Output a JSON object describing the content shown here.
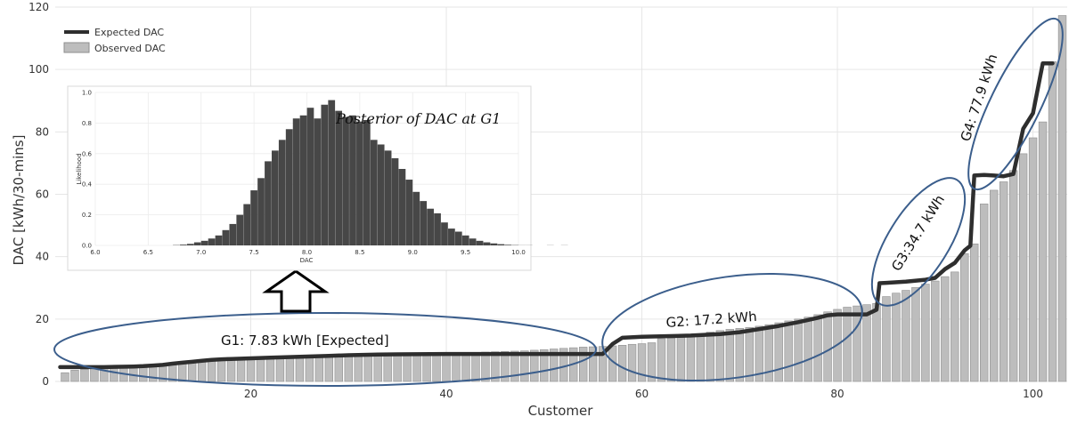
{
  "chart_data": [
    {
      "type": "bar",
      "xlabel": "Customer",
      "ylabel": "DAC [kWh/30-mins]",
      "xlim": [
        0,
        103.5
      ],
      "ylim": [
        0,
        120
      ],
      "xticks": [
        20,
        40,
        60,
        80,
        100
      ],
      "yticks": [
        0,
        20,
        40,
        60,
        80,
        100,
        120
      ],
      "grid": true,
      "legend_position": "top-left",
      "series": [
        {
          "name": "Observed DAC",
          "kind": "bar",
          "x": [
            1,
            2,
            3,
            4,
            5,
            6,
            7,
            8,
            9,
            10,
            11,
            12,
            13,
            14,
            15,
            16,
            17,
            18,
            19,
            20,
            21,
            22,
            23,
            24,
            25,
            26,
            27,
            28,
            29,
            30,
            31,
            32,
            33,
            34,
            35,
            36,
            37,
            38,
            39,
            40,
            41,
            42,
            43,
            44,
            45,
            46,
            47,
            48,
            49,
            50,
            51,
            52,
            53,
            54,
            55,
            56,
            57,
            58,
            59,
            60,
            61,
            62,
            63,
            64,
            65,
            66,
            67,
            68,
            69,
            70,
            71,
            72,
            73,
            74,
            75,
            76,
            77,
            78,
            79,
            80,
            81,
            82,
            83,
            84,
            85,
            86,
            87,
            88,
            89,
            90,
            91,
            92,
            93,
            94,
            95,
            96,
            97,
            98,
            99,
            100,
            101,
            102,
            103
          ],
          "values": [
            2.8,
            3.6,
            3.9,
            4.1,
            4.3,
            4.5,
            4.7,
            4.9,
            5.1,
            5.3,
            5.6,
            5.9,
            6.2,
            6.4,
            6.6,
            6.8,
            7.0,
            7.1,
            7.3,
            7.4,
            7.5,
            7.6,
            7.7,
            7.8,
            7.8,
            7.9,
            7.9,
            8.0,
            8.0,
            8.1,
            8.1,
            8.2,
            8.2,
            8.3,
            8.4,
            8.5,
            8.6,
            8.7,
            8.8,
            8.9,
            9.0,
            9.2,
            9.3,
            9.4,
            9.5,
            9.6,
            9.7,
            9.8,
            10.0,
            10.2,
            10.4,
            10.6,
            10.8,
            11.0,
            11.1,
            11.2,
            11.4,
            11.6,
            11.9,
            12.1,
            12.4,
            13.7,
            13.9,
            14.1,
            14.6,
            15.2,
            15.8,
            16.3,
            16.7,
            17.0,
            17.3,
            17.7,
            18.2,
            18.8,
            19.4,
            20.0,
            20.6,
            21.4,
            22.3,
            23.1,
            23.8,
            24.2,
            24.6,
            25.0,
            27.2,
            28.3,
            29.2,
            30.1,
            31.2,
            32.2,
            33.6,
            35.1,
            41.0,
            44.1,
            56.9,
            61.3,
            64.0,
            67.6,
            73.0,
            78.1,
            83.2,
            102.5,
            117.3
          ]
        },
        {
          "name": "Expected DAC",
          "kind": "line",
          "x": [
            0.5,
            5,
            8,
            9,
            10,
            11,
            12,
            13,
            14,
            15,
            16,
            17,
            18,
            20,
            22,
            25,
            28,
            30,
            33,
            35,
            40,
            45,
            50,
            55,
            56,
            57,
            58,
            60,
            65,
            68,
            70,
            72,
            74,
            76,
            78,
            79,
            80,
            83,
            84,
            84.3,
            85,
            87,
            89,
            90,
            91,
            92,
            93,
            93.6,
            94,
            95,
            96,
            97,
            98,
            99,
            100,
            101,
            102
          ],
          "values": [
            4.6,
            4.6,
            4.8,
            4.9,
            5.1,
            5.3,
            5.7,
            6.0,
            6.3,
            6.6,
            6.9,
            7.1,
            7.2,
            7.4,
            7.6,
            7.9,
            8.2,
            8.4,
            8.6,
            8.7,
            8.8,
            8.8,
            8.8,
            8.8,
            8.8,
            12.0,
            14.0,
            14.3,
            14.7,
            15.2,
            15.8,
            16.8,
            17.8,
            19.0,
            20.4,
            21.2,
            21.5,
            21.5,
            23.0,
            31.5,
            31.6,
            32.0,
            32.6,
            33.2,
            36.0,
            38.0,
            42.0,
            43.5,
            66.0,
            66.2,
            66.0,
            65.8,
            66.5,
            81.0,
            86.0,
            102.0,
            102.0
          ]
        }
      ],
      "groups": [
        {
          "label": "G1: 7.83 kWh [Expected]"
        },
        {
          "label": "G2: 17.2 kWh"
        },
        {
          "label": "G3:34.7 kWh"
        },
        {
          "label": "G4: 77.9 kWh"
        }
      ]
    },
    {
      "type": "bar",
      "title": "Posterior of DAC at G1",
      "xlabel": "DAC",
      "ylabel": "Likelihood",
      "xlim": [
        6.0,
        10.0
      ],
      "ylim": [
        0.0,
        1.0
      ],
      "xticks": [
        6.0,
        6.5,
        7.0,
        7.5,
        8.0,
        8.5,
        9.0,
        9.5,
        10.0
      ],
      "yticks": [
        0.0,
        0.2,
        0.4,
        0.6,
        0.8,
        1.0
      ],
      "grid": true,
      "bin_start": 6.2,
      "bin_width": 0.0667,
      "values": [
        0,
        0,
        0,
        0,
        0,
        0,
        0,
        0,
        0.002,
        0.005,
        0.01,
        0.02,
        0.03,
        0.045,
        0.065,
        0.1,
        0.14,
        0.2,
        0.27,
        0.36,
        0.44,
        0.55,
        0.62,
        0.69,
        0.76,
        0.83,
        0.85,
        0.9,
        0.83,
        0.92,
        0.95,
        0.88,
        0.84,
        0.85,
        0.81,
        0.82,
        0.69,
        0.66,
        0.62,
        0.57,
        0.5,
        0.43,
        0.35,
        0.29,
        0.24,
        0.21,
        0.15,
        0.11,
        0.09,
        0.065,
        0.045,
        0.03,
        0.02,
        0.013,
        0.008,
        0.004,
        0.002,
        0.001,
        0.001,
        0,
        0,
        0.001,
        0,
        0.001
      ]
    }
  ],
  "colors": {
    "bar": "#bdbdbd",
    "bar_edge": "#8f8f8f",
    "line": "#2e2e2e",
    "ellipse": "#3b5e8c",
    "grid": "#e6e6e6",
    "hist": "#474747"
  },
  "arrow_icon": "up-arrow-icon"
}
